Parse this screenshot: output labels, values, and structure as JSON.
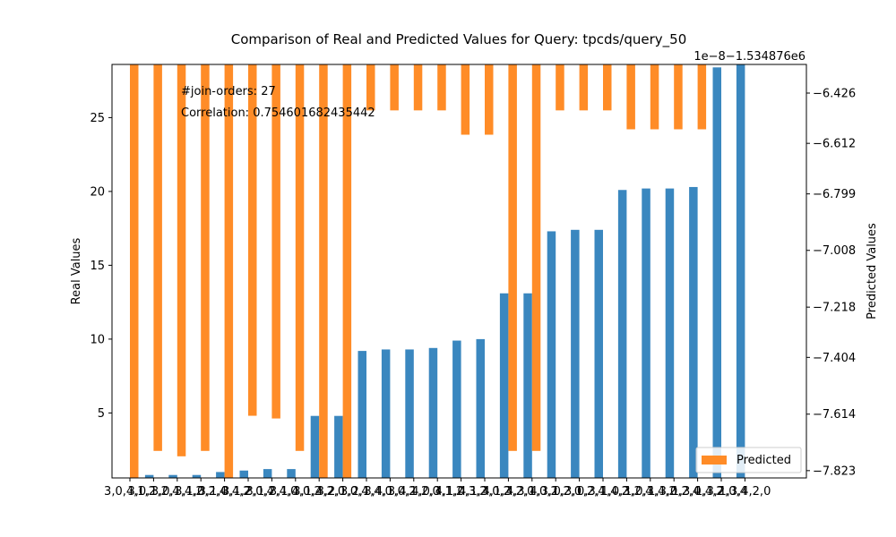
{
  "chart_data": {
    "type": "bar",
    "title": "Comparison of Real and Predicted Values for Query: tpcds/query_50",
    "ylabel": "Real Values",
    "y2label": "Predicted Values",
    "y2_offset_text": "1e−8−1.534876e6",
    "ylim": [
      0.6,
      28.6
    ],
    "y2lim": [
      -7.85,
      -6.32
    ],
    "yticks": [
      5,
      10,
      15,
      20,
      25
    ],
    "y2ticks": [
      {
        "value": -6.426,
        "label": "−6.426"
      },
      {
        "value": -6.612,
        "label": "−6.612"
      },
      {
        "value": -6.799,
        "label": "−6.799"
      },
      {
        "value": -7.008,
        "label": "−7.008"
      },
      {
        "value": -7.218,
        "label": "−7.218"
      },
      {
        "value": -7.404,
        "label": "−7.404"
      },
      {
        "value": -7.614,
        "label": "−7.614"
      },
      {
        "value": -7.823,
        "label": "−7.823"
      }
    ],
    "annotations": [
      "#join-orders: 27",
      "Correlation: 0.754601682435442"
    ],
    "legend": {
      "placement": "lower-right",
      "entries": [
        "Predicted"
      ]
    },
    "colors": {
      "real": "#3a87bf",
      "predicted": "#ff8c27"
    },
    "categories": [
      "3,0,4,1,2",
      "3,0,1,2,4",
      "3,0,1,4,2",
      "3,1,0,2,4",
      "3,1,0,4,2",
      "3,1,2,0,4",
      "3,1,2,4,0",
      "3,1,4,0,2",
      "3,1,4,2,0",
      "3,2,1,0,4",
      "3,2,1,4,0",
      "3,4,1,0,2",
      "3,4,1,2,0",
      "4,0,3,1,2",
      "4,1,0,3,2",
      "4,1,3,0,2",
      "4,1,3,2,0",
      "4,3,1,0,2",
      "4,3,1,2,0",
      "0,3,1,2,4",
      "0,3,1,4,2",
      "1,0,3,2,4",
      "1,0,3,4,2",
      "1,3,0,2,4",
      "1,3,0,4,2",
      "1,3,2,0,4",
      "1,3,4,2,0"
    ],
    "series": [
      {
        "name": "Real",
        "values": [
          0.5,
          0.8,
          0.8,
          0.8,
          1.0,
          1.1,
          1.2,
          1.2,
          4.8,
          4.8,
          9.2,
          9.3,
          9.3,
          9.4,
          9.9,
          10.0,
          13.1,
          13.1,
          17.3,
          17.4,
          17.4,
          20.1,
          20.2,
          20.2,
          20.3,
          28.4,
          28.6
        ]
      },
      {
        "name": "Predicted",
        "values": [
          -7.85,
          -7.75,
          -7.77,
          -7.75,
          -7.85,
          -7.62,
          -7.63,
          -7.75,
          -7.85,
          -7.85,
          -6.49,
          -6.49,
          -6.49,
          -6.49,
          -6.58,
          -6.58,
          -7.75,
          -7.75,
          -6.49,
          -6.49,
          -6.49,
          -6.56,
          -6.56,
          -6.56,
          -6.56,
          -6.32,
          -6.32
        ]
      }
    ]
  }
}
